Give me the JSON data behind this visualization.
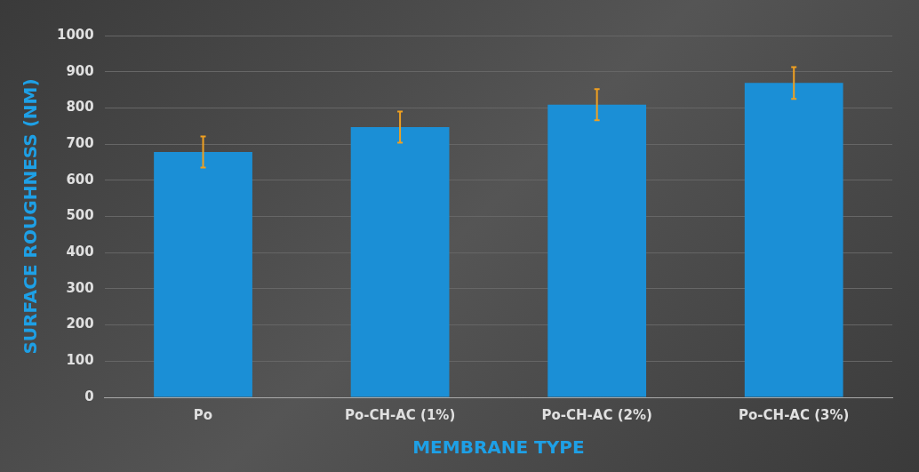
{
  "chart_data": {
    "type": "bar",
    "xlabel": "MEMBRANE TYPE",
    "ylabel": "SURFACE ROUGHNESS (NM)",
    "categories": [
      "Po",
      "Po-CH-AC (1%)",
      "Po-CH-AC (2%)",
      "Po-CH-AC (3%)"
    ],
    "values": [
      678,
      747,
      809,
      869
    ],
    "errors": [
      43,
      43,
      43,
      44
    ],
    "color": "#1b8fd6",
    "ylim": [
      0,
      1000
    ],
    "yticks": [
      0,
      100,
      200,
      300,
      400,
      500,
      600,
      700,
      800,
      900,
      1000
    ],
    "grid": "y",
    "legend": false
  }
}
